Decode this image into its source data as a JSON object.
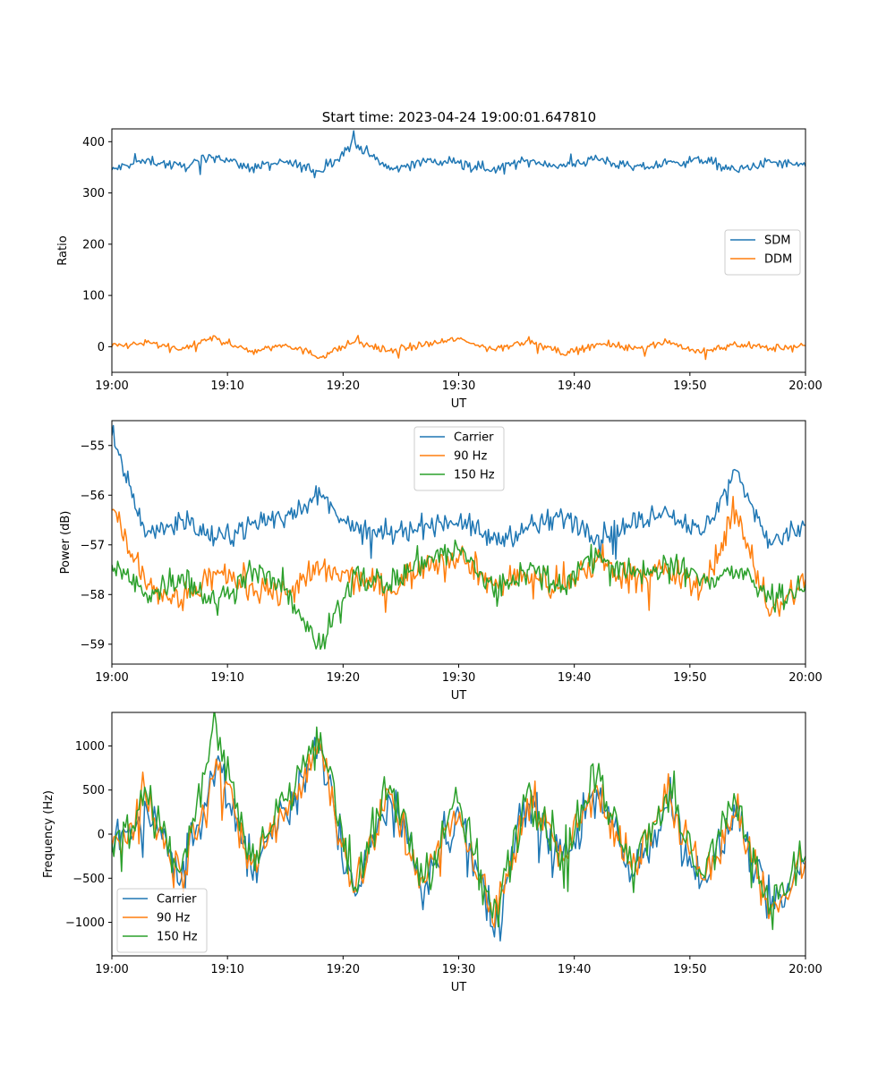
{
  "figure": {
    "title": "Start time: 2023-04-24 19:00:01.647810"
  },
  "colors": {
    "series1": "#1f77b4",
    "series2": "#ff7f0e",
    "series3": "#2ca02c",
    "axes": "#000000",
    "legend_border": "#cccccc"
  },
  "chart_data": [
    {
      "type": "line",
      "title": "Start time: 2023-04-24 19:00:01.647810",
      "xlabel": "UT",
      "ylabel": "Ratio",
      "xlim": [
        "19:00",
        "20:00"
      ],
      "ylim": [
        -50,
        425
      ],
      "xticks": [
        "19:00",
        "19:10",
        "19:20",
        "19:30",
        "19:40",
        "19:50",
        "20:00"
      ],
      "yticks": [
        0,
        100,
        200,
        300,
        400
      ],
      "legend": "center-right",
      "grid": false,
      "x": [
        "19:00",
        "19:03",
        "19:06",
        "19:09",
        "19:12",
        "19:15",
        "19:18",
        "19:21",
        "19:24",
        "19:27",
        "19:30",
        "19:33",
        "19:36",
        "19:39",
        "19:42",
        "19:45",
        "19:48",
        "19:51",
        "19:54",
        "19:57",
        "20:00"
      ],
      "series": [
        {
          "name": "SDM",
          "values": [
            345,
            365,
            350,
            372,
            348,
            360,
            342,
            398,
            345,
            362,
            358,
            346,
            364,
            352,
            368,
            348,
            356,
            365,
            344,
            360,
            352
          ]
        },
        {
          "name": "DDM",
          "values": [
            0,
            8,
            -6,
            18,
            -10,
            5,
            -20,
            10,
            -8,
            4,
            15,
            -5,
            12,
            -14,
            6,
            -4,
            10,
            -12,
            5,
            -3,
            2
          ]
        }
      ]
    },
    {
      "type": "line",
      "xlabel": "UT",
      "ylabel": "Power (dB)",
      "xlim": [
        "19:00",
        "20:00"
      ],
      "ylim": [
        -59.4,
        -54.5
      ],
      "xticks": [
        "19:00",
        "19:10",
        "19:20",
        "19:30",
        "19:40",
        "19:50",
        "20:00"
      ],
      "yticks": [
        -55,
        -56,
        -57,
        -58,
        -59
      ],
      "legend": "top-center",
      "grid": false,
      "x": [
        "19:00",
        "19:03",
        "19:06",
        "19:09",
        "19:12",
        "19:15",
        "19:18",
        "19:21",
        "19:24",
        "19:27",
        "19:30",
        "19:33",
        "19:36",
        "19:39",
        "19:42",
        "19:45",
        "19:48",
        "19:51",
        "19:54",
        "19:57",
        "20:00"
      ],
      "series": [
        {
          "name": "Carrier",
          "values": [
            -54.8,
            -56.8,
            -56.5,
            -56.9,
            -56.6,
            -56.4,
            -56.0,
            -56.7,
            -56.8,
            -56.6,
            -56.5,
            -56.9,
            -56.7,
            -56.4,
            -56.8,
            -56.6,
            -56.3,
            -56.8,
            -55.5,
            -57.0,
            -56.6
          ]
        },
        {
          "name": "90 Hz",
          "values": [
            -56.3,
            -57.9,
            -58.1,
            -57.6,
            -57.8,
            -58.0,
            -57.5,
            -57.7,
            -57.9,
            -57.4,
            -57.2,
            -57.8,
            -57.6,
            -57.9,
            -57.3,
            -57.7,
            -57.5,
            -57.9,
            -56.3,
            -58.4,
            -57.7
          ]
        },
        {
          "name": "150 Hz",
          "values": [
            -57.4,
            -58.0,
            -57.6,
            -58.2,
            -57.5,
            -57.9,
            -59.1,
            -57.6,
            -57.8,
            -57.3,
            -57.1,
            -57.9,
            -57.5,
            -57.8,
            -57.2,
            -57.6,
            -57.4,
            -57.7,
            -57.5,
            -58.1,
            -57.8
          ]
        }
      ]
    },
    {
      "type": "line",
      "xlabel": "UT",
      "ylabel": "Frequency (Hz)",
      "xlim": [
        "19:00",
        "20:00"
      ],
      "ylim": [
        -1380,
        1380
      ],
      "xticks": [
        "19:00",
        "19:10",
        "19:20",
        "19:30",
        "19:40",
        "19:50",
        "20:00"
      ],
      "yticks": [
        1000,
        500,
        0,
        -500,
        -1000
      ],
      "legend": "bottom-left",
      "grid": false,
      "x": [
        "19:00",
        "19:03",
        "19:06",
        "19:09",
        "19:12",
        "19:15",
        "19:18",
        "19:21",
        "19:24",
        "19:27",
        "19:30",
        "19:33",
        "19:36",
        "19:39",
        "19:42",
        "19:45",
        "19:48",
        "19:51",
        "19:54",
        "19:57",
        "20:00"
      ],
      "series": [
        {
          "name": "Carrier",
          "values": [
            -200,
            300,
            -500,
            800,
            -400,
            250,
            950,
            -700,
            400,
            -600,
            200,
            -1050,
            350,
            -300,
            500,
            -450,
            300,
            -550,
            200,
            -900,
            -350
          ]
        },
        {
          "name": "90 Hz",
          "values": [
            -150,
            350,
            -450,
            850,
            -350,
            300,
            1000,
            -650,
            450,
            -550,
            250,
            -1000,
            400,
            -250,
            550,
            -400,
            350,
            -500,
            250,
            -850,
            -300
          ]
        },
        {
          "name": "150 Hz",
          "values": [
            -100,
            450,
            -400,
            1250,
            -300,
            400,
            1150,
            -600,
            550,
            -500,
            350,
            -950,
            500,
            -200,
            650,
            -350,
            450,
            -450,
            350,
            -800,
            -250
          ]
        }
      ]
    }
  ]
}
